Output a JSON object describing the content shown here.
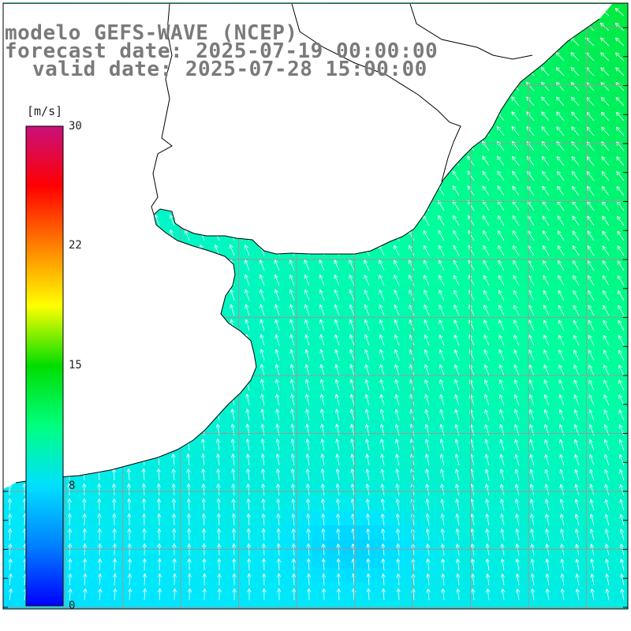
{
  "header": {
    "line1": "modelo GEFS-WAVE (NCEP)",
    "line2": "forecast date: 2025-07-19 00:00:00",
    "line3": "valid date: 2025-07-28 15:00:00"
  },
  "colorbar": {
    "unit": "[m/s]",
    "ticks": [
      "30",
      "22",
      "15",
      "8",
      "0"
    ],
    "colors": [
      "#0000ff",
      "#0080ff",
      "#00e0ff",
      "#00ff80",
      "#00dd00",
      "#ffff00",
      "#ff8000",
      "#ff0000",
      "#c8107c"
    ]
  },
  "map": {
    "land_color": "#ffffff",
    "grid_color": "#9a9a9a",
    "coast_color": "#000000",
    "arrow_color": "#ffffff"
  }
}
